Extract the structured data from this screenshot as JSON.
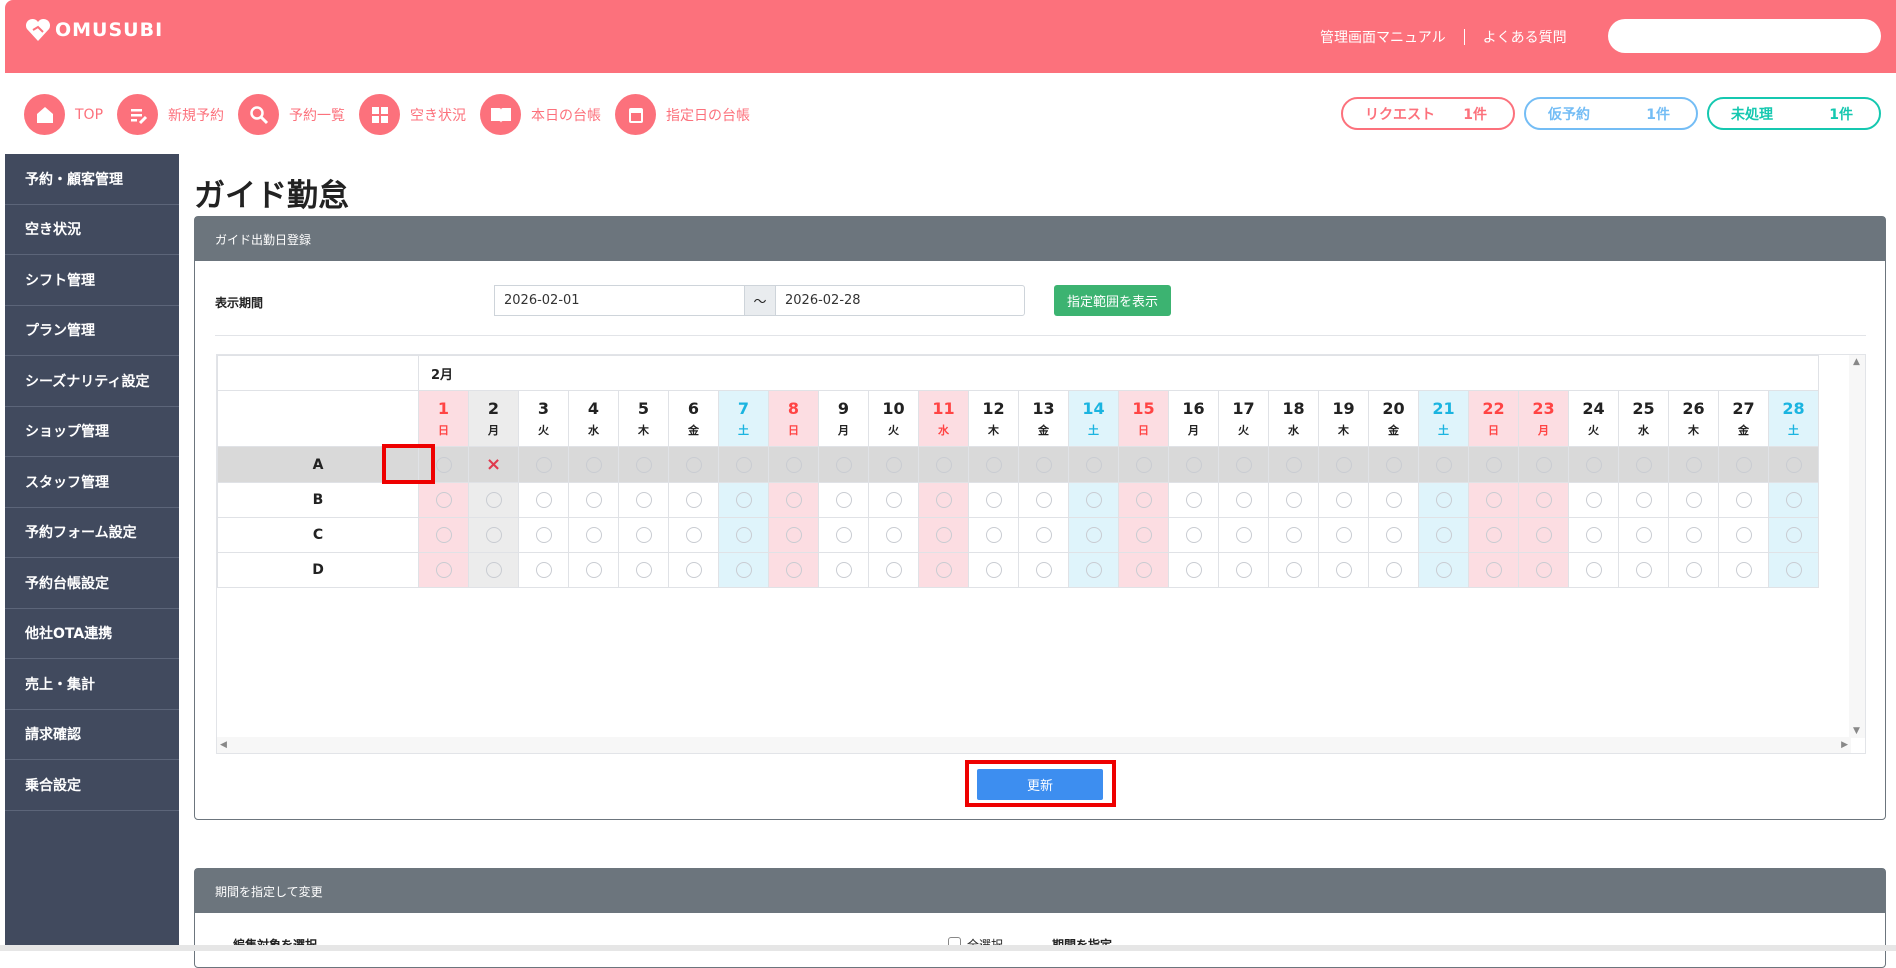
{
  "header": {
    "logo": "OMUSUBI",
    "links": [
      "管理画面マニュアル",
      "よくある質問"
    ],
    "search_placeholder": ""
  },
  "nav": [
    {
      "label": "TOP",
      "icon": "home-icon"
    },
    {
      "label": "新規予約",
      "icon": "new-reservation-icon"
    },
    {
      "label": "予約一覧",
      "icon": "search-icon"
    },
    {
      "label": "空き状況",
      "icon": "grid-icon"
    },
    {
      "label": "本日の台帳",
      "icon": "book-icon"
    },
    {
      "label": "指定日の台帳",
      "icon": "calendar-icon"
    }
  ],
  "badges": [
    {
      "label": "リクエスト",
      "count": "1件",
      "color": "#fc717c"
    },
    {
      "label": "仮予約",
      "count": "1件",
      "color": "#74bdf5"
    },
    {
      "label": "未処理",
      "count": "1件",
      "color": "#15c8b0"
    }
  ],
  "sidebar": [
    "予約・顧客管理",
    "空き状況",
    "シフト管理",
    "プラン管理",
    "シーズナリティ設定",
    "ショップ管理",
    "スタッフ管理",
    "予約フォーム設定",
    "予約台帳設定",
    "他社OTA連携",
    "売上・集計",
    "請求確認",
    "乗合設定"
  ],
  "page_title": "ガイド勤怠",
  "panel1": {
    "title": "ガイド出勤日登録",
    "period_label": "表示期間",
    "start": "2026-02-01",
    "tilde": "～",
    "end": "2026-02-28",
    "show_button": "指定範囲を表示",
    "update_button": "更新"
  },
  "calendar": {
    "month": "2月",
    "days": [
      {
        "d": "1",
        "w": "日",
        "t": "sun"
      },
      {
        "d": "2",
        "w": "月",
        "t": "sel"
      },
      {
        "d": "3",
        "w": "火",
        "t": ""
      },
      {
        "d": "4",
        "w": "水",
        "t": ""
      },
      {
        "d": "5",
        "w": "木",
        "t": ""
      },
      {
        "d": "6",
        "w": "金",
        "t": ""
      },
      {
        "d": "7",
        "w": "土",
        "t": "sat"
      },
      {
        "d": "8",
        "w": "日",
        "t": "sun"
      },
      {
        "d": "9",
        "w": "月",
        "t": ""
      },
      {
        "d": "10",
        "w": "火",
        "t": ""
      },
      {
        "d": "11",
        "w": "水",
        "t": "sun"
      },
      {
        "d": "12",
        "w": "木",
        "t": ""
      },
      {
        "d": "13",
        "w": "金",
        "t": ""
      },
      {
        "d": "14",
        "w": "土",
        "t": "sat"
      },
      {
        "d": "15",
        "w": "日",
        "t": "sun"
      },
      {
        "d": "16",
        "w": "月",
        "t": ""
      },
      {
        "d": "17",
        "w": "火",
        "t": ""
      },
      {
        "d": "18",
        "w": "水",
        "t": ""
      },
      {
        "d": "19",
        "w": "木",
        "t": ""
      },
      {
        "d": "20",
        "w": "金",
        "t": ""
      },
      {
        "d": "21",
        "w": "土",
        "t": "sat"
      },
      {
        "d": "22",
        "w": "日",
        "t": "sun"
      },
      {
        "d": "23",
        "w": "月",
        "t": "sun"
      },
      {
        "d": "24",
        "w": "火",
        "t": ""
      },
      {
        "d": "25",
        "w": "水",
        "t": ""
      },
      {
        "d": "26",
        "w": "木",
        "t": ""
      },
      {
        "d": "27",
        "w": "金",
        "t": ""
      },
      {
        "d": "28",
        "w": "土",
        "t": "sat"
      }
    ],
    "guides": [
      {
        "name": "A",
        "off_days": [
          "2"
        ],
        "highlighted": true
      },
      {
        "name": "B",
        "off_days": []
      },
      {
        "name": "C",
        "off_days": []
      },
      {
        "name": "D",
        "off_days": []
      }
    ],
    "mark_on": "○",
    "mark_off": "×"
  },
  "panel2": {
    "title": "期間を指定して変更",
    "target_label": "編集対象を選択",
    "select_all": "全選択",
    "period_label": "期間を指定"
  }
}
